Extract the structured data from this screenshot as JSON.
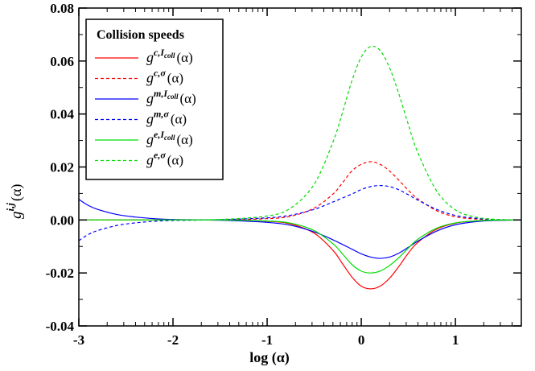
{
  "chart_data": {
    "type": "line",
    "xlabel": "log (α)",
    "ylabel_base": "g",
    "ylabel_sup": "i,j",
    "ylabel_arg": "(α)",
    "xlim": [
      -3,
      1.7
    ],
    "ylim": [
      -0.04,
      0.08
    ],
    "x_ticks": [
      -3,
      -2,
      -1,
      0,
      1
    ],
    "x_tick_labels": [
      "-3",
      "-2",
      "-1",
      "0",
      "1"
    ],
    "y_ticks": [
      -0.04,
      -0.02,
      0.0,
      0.02,
      0.04,
      0.06,
      0.08
    ],
    "y_tick_labels": [
      "-0.04",
      "-0.02",
      "0.00",
      "0.02",
      "0.04",
      "0.06",
      "0.08"
    ],
    "grid": false,
    "legend": {
      "title": "Collision speeds",
      "placement": "top-left"
    },
    "series": [
      {
        "name": "c,I_coll",
        "label_base": "g",
        "label_sup": "c,I",
        "label_sub": "coll",
        "label_arg": "(α)",
        "color": "#ff0000",
        "dash": "solid",
        "x": [
          -3.0,
          -2.5,
          -2.0,
          -1.5,
          -1.0,
          -0.75,
          -0.5,
          -0.3,
          -0.2,
          -0.1,
          0.0,
          0.1,
          0.2,
          0.3,
          0.4,
          0.5,
          0.6,
          0.8,
          1.0,
          1.2,
          1.4,
          1.7
        ],
        "y": [
          0.0,
          0.0,
          0.0,
          0.0,
          -0.0005,
          -0.0015,
          -0.005,
          -0.0115,
          -0.0165,
          -0.0215,
          -0.025,
          -0.026,
          -0.025,
          -0.022,
          -0.0175,
          -0.0125,
          -0.0085,
          -0.0035,
          -0.0012,
          -0.0004,
          -0.0001,
          0.0
        ]
      },
      {
        "name": "c,σ",
        "label_base": "g",
        "label_sup": "c,σ",
        "label_sub": "",
        "label_arg": "(α)",
        "color": "#ff0000",
        "dash": "dashed",
        "x": [
          -3.0,
          -2.5,
          -2.0,
          -1.5,
          -1.0,
          -0.75,
          -0.5,
          -0.3,
          -0.2,
          -0.1,
          0.0,
          0.1,
          0.2,
          0.3,
          0.4,
          0.5,
          0.6,
          0.8,
          1.0,
          1.2,
          1.4,
          1.7
        ],
        "y": [
          0.0,
          0.0,
          0.0,
          0.0,
          0.0005,
          0.0014,
          0.0045,
          0.0098,
          0.014,
          0.0185,
          0.021,
          0.022,
          0.021,
          0.0185,
          0.015,
          0.0112,
          0.008,
          0.0035,
          0.0012,
          0.0004,
          0.0001,
          0.0
        ]
      },
      {
        "name": "m,I_coll",
        "label_base": "g",
        "label_sup": "m,I",
        "label_sub": "coll",
        "label_arg": "(α)",
        "color": "#0000ff",
        "dash": "solid",
        "x": [
          -3.0,
          -2.9,
          -2.8,
          -2.6,
          -2.4,
          -2.2,
          -2.0,
          -1.5,
          -1.0,
          -0.75,
          -0.5,
          -0.3,
          -0.1,
          0.0,
          0.1,
          0.2,
          0.3,
          0.4,
          0.5,
          0.6,
          0.8,
          1.0,
          1.2,
          1.4,
          1.7
        ],
        "y": [
          0.0078,
          0.0055,
          0.004,
          0.0021,
          0.0011,
          0.0005,
          0.0002,
          -0.0001,
          -0.0009,
          -0.002,
          -0.0045,
          -0.0075,
          -0.011,
          -0.0128,
          -0.014,
          -0.0145,
          -0.014,
          -0.0125,
          -0.0103,
          -0.008,
          -0.0042,
          -0.0018,
          -0.0007,
          -0.0002,
          0.0
        ]
      },
      {
        "name": "m,σ",
        "label_base": "g",
        "label_sup": "m,σ",
        "label_sub": "",
        "label_arg": "(α)",
        "color": "#0000ff",
        "dash": "dashed",
        "x": [
          -3.0,
          -2.9,
          -2.8,
          -2.6,
          -2.4,
          -2.2,
          -2.0,
          -1.5,
          -1.0,
          -0.75,
          -0.5,
          -0.3,
          -0.1,
          0.0,
          0.1,
          0.2,
          0.3,
          0.4,
          0.5,
          0.6,
          0.8,
          1.0,
          1.2,
          1.4,
          1.7
        ],
        "y": [
          -0.0078,
          -0.0055,
          -0.004,
          -0.0021,
          -0.0011,
          -0.0005,
          -0.0002,
          0.0001,
          0.0008,
          0.0018,
          0.004,
          0.0068,
          0.0098,
          0.0115,
          0.0126,
          0.013,
          0.0126,
          0.0114,
          0.0095,
          0.0075,
          0.004,
          0.0017,
          0.0007,
          0.0002,
          0.0
        ]
      },
      {
        "name": "e,I_coll",
        "label_base": "g",
        "label_sup": "e,I",
        "label_sub": "coll",
        "label_arg": "(α)",
        "color": "#00dd00",
        "dash": "solid",
        "x": [
          -3.0,
          -2.5,
          -2.0,
          -1.5,
          -1.0,
          -0.75,
          -0.5,
          -0.3,
          -0.2,
          -0.1,
          0.0,
          0.1,
          0.2,
          0.3,
          0.4,
          0.5,
          0.6,
          0.8,
          1.0,
          1.2,
          1.4,
          1.7
        ],
        "y": [
          0.0,
          0.0,
          0.0,
          0.0,
          -0.0004,
          -0.0012,
          -0.004,
          -0.009,
          -0.0128,
          -0.0168,
          -0.0193,
          -0.02,
          -0.0193,
          -0.0172,
          -0.0142,
          -0.0106,
          -0.0073,
          -0.0031,
          -0.0011,
          -0.0004,
          -0.0001,
          0.0
        ]
      },
      {
        "name": "e,σ",
        "label_base": "g",
        "label_sup": "e,σ",
        "label_sub": "",
        "label_arg": "(α)",
        "color": "#00dd00",
        "dash": "dashed",
        "x": [
          -3.0,
          -2.5,
          -2.0,
          -1.5,
          -1.0,
          -0.75,
          -0.5,
          -0.3,
          -0.2,
          -0.1,
          0.0,
          0.1,
          0.2,
          0.3,
          0.4,
          0.5,
          0.6,
          0.8,
          1.0,
          1.2,
          1.4,
          1.7
        ],
        "y": [
          0.0,
          0.0,
          0.0,
          0.0002,
          0.0015,
          0.0045,
          0.0135,
          0.0295,
          0.0405,
          0.0525,
          0.0615,
          0.0655,
          0.064,
          0.0575,
          0.0475,
          0.036,
          0.0255,
          0.011,
          0.0038,
          0.0012,
          0.0003,
          0.0
        ]
      }
    ]
  }
}
